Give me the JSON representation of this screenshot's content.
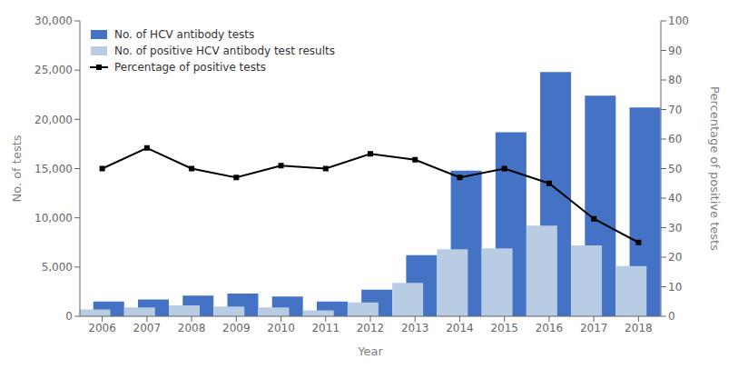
{
  "chart_data": {
    "type": "bar",
    "xlabel": "Year",
    "ylabel": "No. of tests",
    "y2label": "Percentage of positive tests",
    "categories": [
      "2006",
      "2007",
      "2008",
      "2009",
      "2010",
      "2011",
      "2012",
      "2013",
      "2014",
      "2015",
      "2016",
      "2017",
      "2018"
    ],
    "series": [
      {
        "name": "No. of HCV antibody tests",
        "color": "#4472C4",
        "values": [
          1500,
          1700,
          2100,
          2300,
          2000,
          1500,
          2700,
          6200,
          14800,
          18700,
          24800,
          22400,
          21200
        ]
      },
      {
        "name": "No. of positive HCV antibody test results",
        "color": "#B8CCE4",
        "values": [
          700,
          900,
          1100,
          1000,
          900,
          600,
          1400,
          3400,
          6800,
          6900,
          9200,
          7200,
          5100
        ]
      },
      {
        "name": "Percentage of positive tests",
        "type": "line",
        "axis": "y2",
        "color": "#000000",
        "marker": "square",
        "line_style": "solid",
        "values": [
          50,
          57,
          50,
          47,
          51,
          50,
          55,
          53,
          47,
          50,
          45,
          33,
          25
        ]
      }
    ],
    "ylim": [
      0,
      30000
    ],
    "yticks": [
      0,
      {
        "value": 5000,
        "label": "5,000"
      },
      {
        "value": 10000,
        "label": "10,000"
      },
      {
        "value": 15000,
        "label": "15,000"
      },
      {
        "value": 20000,
        "label": "20,000"
      },
      {
        "value": 25000,
        "label": "25,000"
      },
      {
        "value": 30000,
        "label": "30,000"
      }
    ],
    "y2lim": [
      0,
      100
    ],
    "y2ticks": [
      0,
      10,
      20,
      30,
      40,
      50,
      60,
      70,
      80,
      90,
      100
    ],
    "grid": false,
    "legend": "upper left",
    "stacked": false
  }
}
